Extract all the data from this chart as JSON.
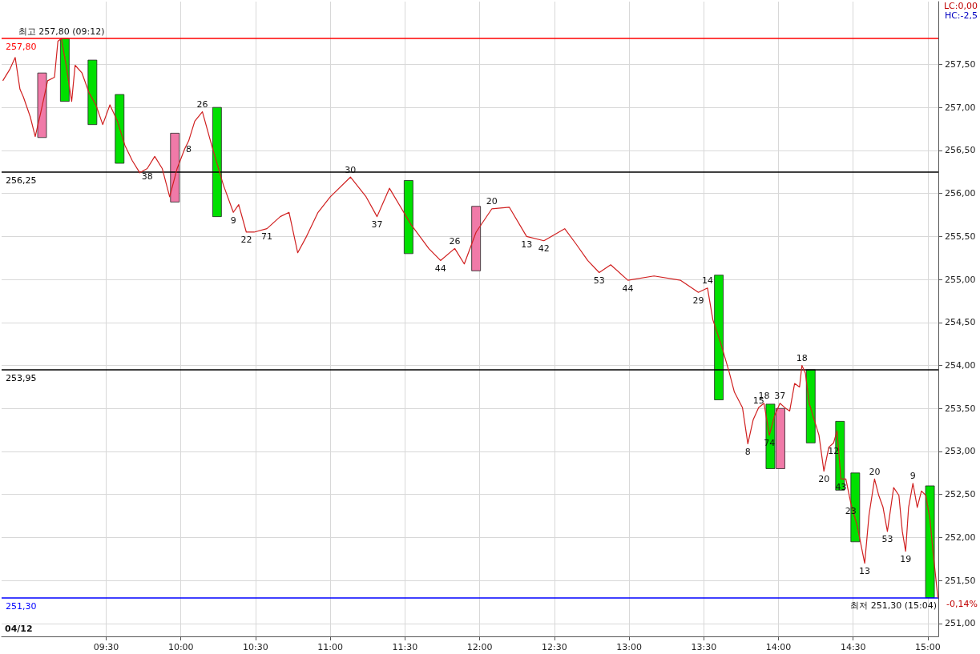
{
  "chart_data": {
    "type": "line",
    "xlim": [
      8.8,
      15.07
    ],
    "xticks": [
      {
        "value": 9.5,
        "label": "09:30"
      },
      {
        "value": 10,
        "label": "10:00"
      },
      {
        "value": 10.5,
        "label": "10:30"
      },
      {
        "value": 11,
        "label": "11:00"
      },
      {
        "value": 11.5,
        "label": "11:30"
      },
      {
        "value": 12,
        "label": "12:00"
      },
      {
        "value": 12.5,
        "label": "12:30"
      },
      {
        "value": 13,
        "label": "13:00"
      },
      {
        "value": 13.5,
        "label": "13:30"
      },
      {
        "value": 14,
        "label": "14:00"
      },
      {
        "value": 14.5,
        "label": "14:30"
      },
      {
        "value": 15,
        "label": "15:00"
      }
    ],
    "ylim": [
      250.85,
      258.23
    ],
    "yticks": [
      {
        "value": 251,
        "label": "251,00"
      },
      {
        "value": 251.5,
        "label": "251,50"
      },
      {
        "value": 252,
        "label": "252,00"
      },
      {
        "value": 252.5,
        "label": "252,50"
      },
      {
        "value": 253,
        "label": "253,00"
      },
      {
        "value": 253.5,
        "label": "253,50"
      },
      {
        "value": 254,
        "label": "254,00"
      },
      {
        "value": 254.5,
        "label": "254,50"
      },
      {
        "value": 255,
        "label": "255,00"
      },
      {
        "value": 255.5,
        "label": "255,50"
      },
      {
        "value": 256,
        "label": "256,00"
      },
      {
        "value": 256.5,
        "label": "256,50"
      },
      {
        "value": 257,
        "label": "257,00"
      },
      {
        "value": 257.5,
        "label": "257,50"
      }
    ],
    "grid": true,
    "marker": "none",
    "line_style": "solid",
    "series": [
      {
        "type": "bar",
        "x": [
          9.071,
          9.223,
          9.408,
          9.59,
          9.96,
          10.242,
          11.524,
          11.976,
          13.601,
          13.946,
          14.013,
          14.216,
          14.412,
          14.514,
          15.014
        ],
        "base": [
          256.65,
          257.07,
          256.8,
          256.35,
          255.9,
          255.73,
          255.3,
          255.1,
          253.6,
          252.8,
          252.8,
          253.1,
          252.55,
          251.95,
          251.3
        ],
        "values": [
          0.75,
          0.73,
          0.75,
          0.8,
          0.8,
          1.27,
          0.85,
          0.75,
          1.45,
          0.75,
          0.7,
          0.85,
          0.8,
          0.8,
          1.3
        ],
        "colors": [
          "#f07aa8",
          "#00e000",
          "#00e000",
          "#00e000",
          "#f07aa8",
          "#00e000",
          "#00e000",
          "#f07aa8",
          "#00e000",
          "#00e000",
          "#f07aa8",
          "#00e000",
          "#00e000",
          "#00e000",
          "#00e000"
        ]
      },
      {
        "color": "#d02020",
        "x": [
          8.808,
          8.854,
          8.891,
          8.923,
          8.946,
          8.992,
          9.025,
          9.062,
          9.108,
          9.154,
          9.177,
          9.2,
          9.232,
          9.269,
          9.292,
          9.338,
          9.385,
          9.431,
          9.477,
          9.525,
          9.575,
          9.625,
          9.675,
          9.725,
          9.775,
          9.825,
          9.875,
          9.925,
          9.975,
          10.026,
          10.052,
          10.093,
          10.144,
          10.206,
          10.284,
          10.351,
          10.387,
          10.438,
          10.49,
          10.576,
          10.665,
          10.724,
          10.782,
          10.841,
          10.918,
          11.0,
          11.135,
          11.24,
          11.313,
          11.396,
          11.54,
          11.659,
          11.738,
          11.833,
          11.897,
          11.976,
          12.081,
          12.198,
          12.314,
          12.43,
          12.569,
          12.646,
          12.723,
          12.8,
          12.877,
          12.992,
          13.167,
          13.345,
          13.464,
          13.525,
          13.561,
          13.615,
          13.669,
          13.705,
          13.759,
          13.795,
          13.831,
          13.867,
          13.903,
          13.939,
          13.975,
          14.01,
          14.042,
          14.075,
          14.108,
          14.141,
          14.157,
          14.18,
          14.206,
          14.239,
          14.271,
          14.304,
          14.337,
          14.369,
          14.392,
          14.418,
          14.451,
          14.484,
          14.529,
          14.577,
          14.606,
          14.643,
          14.671,
          14.7,
          14.729,
          14.771,
          14.806,
          14.829,
          14.851,
          14.871,
          14.9,
          14.929,
          14.957,
          14.986,
          15.014,
          15.034,
          15.067
        ],
        "values": [
          257.31,
          257.44,
          257.58,
          257.21,
          257.12,
          256.89,
          256.66,
          256.94,
          257.31,
          257.35,
          257.77,
          257.8,
          257.49,
          257.07,
          257.49,
          257.4,
          257.17,
          257.03,
          256.8,
          257.03,
          256.84,
          256.56,
          256.38,
          256.24,
          256.29,
          256.43,
          256.29,
          255.96,
          256.29,
          256.52,
          256.61,
          256.84,
          256.95,
          256.56,
          256.1,
          255.78,
          255.87,
          255.55,
          255.55,
          255.59,
          255.73,
          255.78,
          255.31,
          255.5,
          255.78,
          255.96,
          256.19,
          255.96,
          255.73,
          256.06,
          255.64,
          255.36,
          255.22,
          255.36,
          255.18,
          255.55,
          255.82,
          255.84,
          255.5,
          255.45,
          255.59,
          255.41,
          255.22,
          255.08,
          255.17,
          254.99,
          255.04,
          254.99,
          254.85,
          254.9,
          254.53,
          254.25,
          253.93,
          253.69,
          253.51,
          253.09,
          253.37,
          253.51,
          253.56,
          253.19,
          253.42,
          253.56,
          253.51,
          253.47,
          253.79,
          253.75,
          254.0,
          253.91,
          253.56,
          253.37,
          253.19,
          252.77,
          253.05,
          253.1,
          253.24,
          252.68,
          252.68,
          252.4,
          252.12,
          251.7,
          252.26,
          252.68,
          252.49,
          252.35,
          252.07,
          252.58,
          252.49,
          252.07,
          251.84,
          252.35,
          252.63,
          252.35,
          252.54,
          252.49,
          252.21,
          251.84,
          251.3
        ]
      }
    ],
    "ref_lines": [
      {
        "axis": "y",
        "value": 257.8,
        "label": "257,80",
        "color": "#ff0000"
      },
      {
        "axis": "y",
        "value": 256.25,
        "label": "256,25",
        "color": "#000000"
      },
      {
        "axis": "y",
        "value": 253.95,
        "label": "253,95",
        "color": "#000000"
      },
      {
        "axis": "y",
        "value": 251.3,
        "label": "251,30",
        "color": "#0000ff"
      }
    ],
    "annotations": [
      {
        "text": "최고 257,80 (09:12)",
        "x": 9.2,
        "y": 257.8
      },
      {
        "text": "최저 251,30 (15:04)",
        "x": 15.067,
        "y": 251.3
      },
      "LC:0,00",
      "HC:-2,5",
      "-0,14%",
      "04/12",
      {
        "text": "26",
        "x": 10.144,
        "y": 256.95
      },
      {
        "text": "38",
        "x": 9.775,
        "y": 256.29
      },
      {
        "text": "8",
        "x": 10.052,
        "y": 256.61
      },
      {
        "text": "30",
        "x": 11.135,
        "y": 256.19
      },
      {
        "text": "9",
        "x": 10.351,
        "y": 255.78
      },
      {
        "text": "22",
        "x": 10.438,
        "y": 255.55
      },
      {
        "text": "71",
        "x": 10.576,
        "y": 255.59
      },
      {
        "text": "37",
        "x": 11.313,
        "y": 255.73
      },
      {
        "text": "26",
        "x": 11.833,
        "y": 255.36
      },
      {
        "text": "20",
        "x": 12.081,
        "y": 255.82
      },
      {
        "text": "13",
        "x": 12.314,
        "y": 255.5
      },
      {
        "text": "44",
        "x": 11.738,
        "y": 255.22
      },
      {
        "text": "42",
        "x": 12.43,
        "y": 255.45
      },
      {
        "text": "53",
        "x": 12.8,
        "y": 255.08
      },
      {
        "text": "44",
        "x": 12.992,
        "y": 254.99
      },
      {
        "text": "14",
        "x": 13.525,
        "y": 254.9
      },
      {
        "text": "29",
        "x": 13.464,
        "y": 254.85
      },
      {
        "text": "15",
        "x": 13.867,
        "y": 253.51
      },
      {
        "text": "18",
        "x": 13.903,
        "y": 253.56
      },
      {
        "text": "8",
        "x": 13.795,
        "y": 253.09
      },
      {
        "text": "74",
        "x": 13.939,
        "y": 253.19
      },
      {
        "text": "37",
        "x": 14.01,
        "y": 253.56
      },
      {
        "text": "18",
        "x": 14.157,
        "y": 254.0
      },
      {
        "text": "20",
        "x": 14.304,
        "y": 252.77
      },
      {
        "text": "12",
        "x": 14.369,
        "y": 253.1
      },
      {
        "text": "43",
        "x": 14.418,
        "y": 252.68
      },
      {
        "text": "23",
        "x": 14.484,
        "y": 252.4
      },
      {
        "text": "13",
        "x": 14.577,
        "y": 251.7
      },
      {
        "text": "20",
        "x": 14.643,
        "y": 252.68
      },
      {
        "text": "53",
        "x": 14.729,
        "y": 252.07
      },
      {
        "text": "19",
        "x": 14.851,
        "y": 251.84
      },
      {
        "text": "9",
        "x": 14.9,
        "y": 252.63
      }
    ]
  }
}
